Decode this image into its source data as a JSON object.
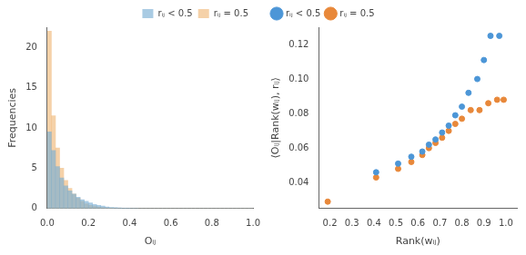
{
  "chart_data": [
    {
      "type": "histogram",
      "xlabel": "Oᵢⱼ",
      "ylabel": "Frequencies",
      "bins": [
        0.0,
        0.02,
        0.04,
        0.06,
        0.08,
        0.1,
        0.12,
        0.14,
        0.16,
        0.18,
        0.2,
        0.22,
        0.24,
        0.26,
        0.28,
        0.3,
        0.32,
        0.34,
        0.36,
        0.38,
        0.4,
        0.42,
        0.44,
        0.46,
        0.48,
        0.5,
        0.52,
        0.54,
        0.56,
        0.58,
        0.6,
        0.62,
        0.64,
        0.66,
        0.68,
        0.7,
        0.72,
        0.74,
        0.76,
        0.78,
        0.8,
        0.82,
        0.84,
        0.86,
        0.88,
        0.9,
        0.92,
        0.94,
        0.96,
        0.98,
        1.0
      ],
      "series": [
        {
          "name": "rᵢⱼ < 0.5",
          "color": "#7BAFD4",
          "values": [
            9.5,
            7.2,
            5.2,
            3.8,
            2.8,
            2.2,
            1.8,
            1.4,
            1.1,
            0.9,
            0.7,
            0.5,
            0.4,
            0.3,
            0.2,
            0.15,
            0.1,
            0.08,
            0.06,
            0.04,
            0.03,
            0.02,
            0.01,
            0.008,
            0.005,
            0.003,
            0.002,
            0.001,
            0.001,
            0.0,
            0.0,
            0.0,
            0.0,
            0.0,
            0.0,
            0.0,
            0.0,
            0.0,
            0.0,
            0.0,
            0.0,
            0.0,
            0.0,
            0.0,
            0.0,
            0.0,
            0.0,
            0.0,
            0.0,
            0.0
          ]
        },
        {
          "name": "rᵢⱼ = 0.5",
          "color": "#F0B87A",
          "values": [
            22.0,
            11.5,
            7.5,
            5.0,
            3.5,
            2.5,
            1.8,
            1.3,
            0.9,
            0.6,
            0.4,
            0.3,
            0.2,
            0.1,
            0.07,
            0.05,
            0.03,
            0.02,
            0.01,
            0.005,
            0.003,
            0.002,
            0.001,
            0.0,
            0.0,
            0.0,
            0.0,
            0.0,
            0.0,
            0.0,
            0.0,
            0.0,
            0.0,
            0.0,
            0.0,
            0.0,
            0.0,
            0.0,
            0.0,
            0.0,
            0.0,
            0.0,
            0.0,
            0.0,
            0.0,
            0.0,
            0.0,
            0.0,
            0.0,
            0.0
          ]
        }
      ],
      "xlim": [
        0.0,
        1.0
      ],
      "ylim": [
        0,
        22.5
      ],
      "xticks": [
        {
          "value": 0,
          "label": "0.0"
        },
        0.2,
        0.4,
        0.6,
        0.8,
        {
          "value": 1,
          "label": "1.0"
        }
      ],
      "yticks": [
        0,
        5,
        10,
        15,
        20
      ],
      "grid": false,
      "legend": "upper right"
    },
    {
      "type": "scatter",
      "xlabel": "Rank(wᵢⱼ)",
      "ylabel": "⟨Oᵢⱼ|Rank(wᵢⱼ), rᵢⱼ⟩",
      "series": [
        {
          "name": "rᵢⱼ < 0.5",
          "color": "#4C96D7",
          "x": [
            0.41,
            0.51,
            0.57,
            0.62,
            0.65,
            0.68,
            0.71,
            0.74,
            0.77,
            0.8,
            0.83,
            0.87,
            0.9,
            0.93,
            0.97
          ],
          "values": [
            0.046,
            0.051,
            0.055,
            0.058,
            0.062,
            0.065,
            0.069,
            0.073,
            0.079,
            0.084,
            0.092,
            0.1,
            0.111,
            0.125,
            0.125
          ]
        },
        {
          "name": "rᵢⱼ = 0.5",
          "color": "#E8883A",
          "x": [
            0.19,
            0.41,
            0.51,
            0.57,
            0.62,
            0.65,
            0.68,
            0.71,
            0.74,
            0.77,
            0.8,
            0.84,
            0.88,
            0.92,
            0.96,
            0.99
          ],
          "values": [
            0.029,
            0.043,
            0.048,
            0.052,
            0.056,
            0.06,
            0.063,
            0.066,
            0.07,
            0.074,
            0.077,
            0.082,
            0.082,
            0.086,
            0.088,
            0.088
          ]
        }
      ],
      "xlim": [
        0.15,
        1.05
      ],
      "ylim": [
        0.025,
        0.13
      ],
      "xticks": [
        0.2,
        0.3,
        0.4,
        0.5,
        0.6,
        0.7,
        0.8,
        0.9,
        {
          "value": 1,
          "label": "1.0"
        }
      ],
      "yticks": [
        0.04,
        0.06,
        0.08,
        {
          "value": 0.1,
          "label": "0.10"
        },
        0.12
      ],
      "grid": false,
      "legend": "upper left"
    }
  ]
}
